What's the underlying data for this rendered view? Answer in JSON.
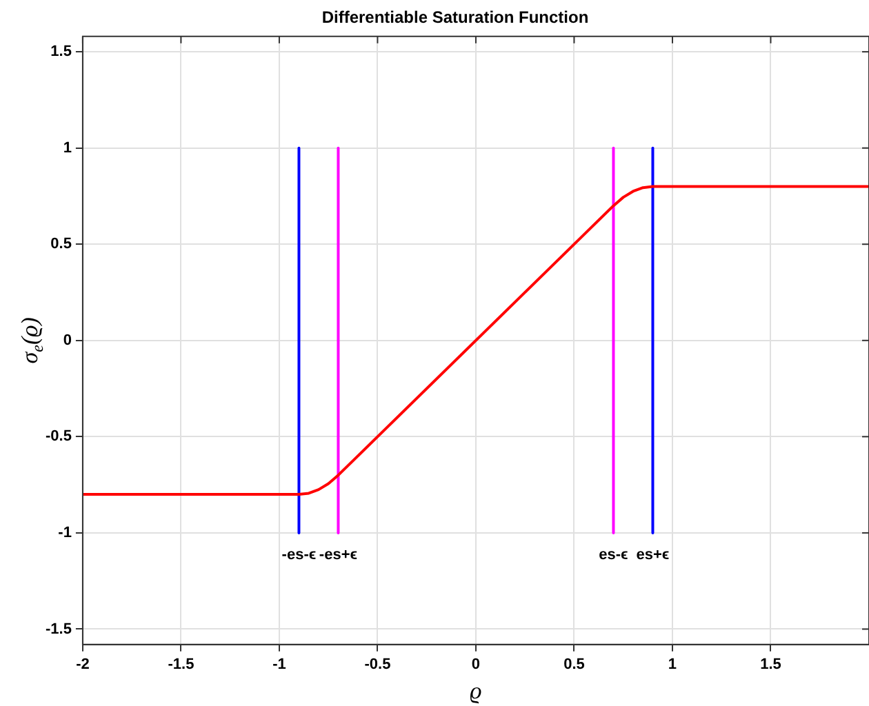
{
  "chart_data": {
    "type": "line",
    "title": "Differentiable Saturation Function",
    "xlabel": "ϱ",
    "ylabel": "σ$_{e}$(ϱ)",
    "xlim": [
      -2,
      2
    ],
    "ylim": [
      -1.58,
      1.58
    ],
    "xticks": [
      -2,
      -1.5,
      -1,
      -0.5,
      0,
      0.5,
      1,
      1.5
    ],
    "yticks": [
      -1.5,
      -1,
      -0.5,
      0,
      0.5,
      1,
      1.5
    ],
    "grid": true,
    "legend": false,
    "marker": "none",
    "line_style": "solid",
    "series": [
      {
        "color": "#ff0000",
        "x": [
          -2,
          -0.9,
          -0.85,
          -0.8,
          -0.75,
          -0.7,
          0.7,
          0.75,
          0.8,
          0.85,
          0.9,
          2
        ],
        "values": [
          -0.8,
          -0.8,
          -0.794,
          -0.775,
          -0.744,
          -0.7,
          0.7,
          0.744,
          0.775,
          0.794,
          0.8,
          0.8
        ]
      },
      {
        "color": "#0000ff",
        "x": [
          -0.9,
          -0.9
        ],
        "values": [
          -1,
          1
        ]
      },
      {
        "color": "#ff00ff",
        "x": [
          -0.7,
          -0.7
        ],
        "values": [
          -1,
          1
        ]
      },
      {
        "color": "#ff00ff",
        "x": [
          0.7,
          0.7
        ],
        "values": [
          -1,
          1
        ]
      },
      {
        "color": "#0000ff",
        "x": [
          0.9,
          0.9
        ],
        "values": [
          -1,
          1
        ]
      }
    ],
    "annotations": [
      {
        "text": "-es-ϵ",
        "x": -0.9,
        "y": -1
      },
      {
        "text": "-es+ϵ",
        "x": -0.7,
        "y": -1
      },
      {
        "text": "es-ϵ",
        "x": 0.7,
        "y": -1
      },
      {
        "text": "es+ϵ",
        "x": 0.9,
        "y": -1
      }
    ]
  }
}
